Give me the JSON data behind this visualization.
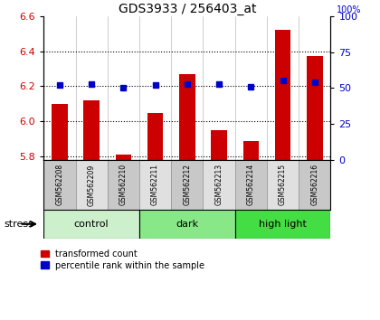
{
  "title": "GDS3933 / 256403_at",
  "samples": [
    "GSM562208",
    "GSM562209",
    "GSM562210",
    "GSM562211",
    "GSM562212",
    "GSM562213",
    "GSM562214",
    "GSM562215",
    "GSM562216"
  ],
  "red_values": [
    6.1,
    6.12,
    5.81,
    6.05,
    6.27,
    5.95,
    5.89,
    6.52,
    6.37
  ],
  "blue_percentiles": [
    52,
    53,
    50,
    52,
    53,
    53,
    51,
    55,
    54
  ],
  "ylim_left": [
    5.78,
    6.6
  ],
  "ylim_right": [
    0,
    100
  ],
  "groups": [
    {
      "label": "control",
      "start": 0,
      "end": 3,
      "color": "#ccf0cc"
    },
    {
      "label": "dark",
      "start": 3,
      "end": 6,
      "color": "#88e888"
    },
    {
      "label": "high light",
      "start": 6,
      "end": 9,
      "color": "#44dd44"
    }
  ],
  "yticks_left": [
    5.8,
    6.0,
    6.2,
    6.4,
    6.6
  ],
  "yticks_right": [
    0,
    25,
    50,
    75,
    100
  ],
  "bar_color_red": "#cc0000",
  "bar_color_blue": "#0000cc",
  "bar_width": 0.5,
  "baseline": 5.78,
  "dotted_lines": [
    5.8,
    6.0,
    6.2,
    6.4
  ]
}
